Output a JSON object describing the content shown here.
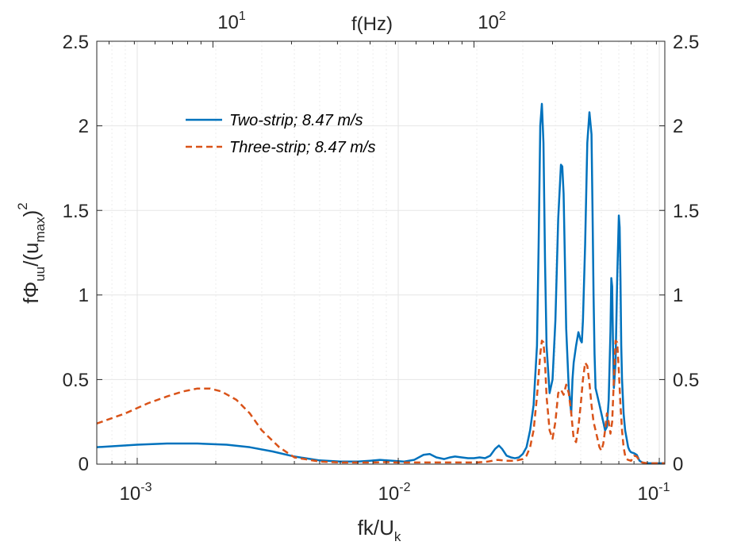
{
  "chart_data": {
    "type": "line",
    "xscale": "log",
    "xlim": [
      0.0007,
      0.105
    ],
    "ylim": [
      0,
      2.5
    ],
    "xlabel": {
      "base": "fk/U",
      "sub": "k"
    },
    "ylabel": {
      "base": "fΦ",
      "sub1": "uu",
      "mid": "/(u",
      "sub2": "max",
      "end": ")",
      "sup": "2"
    },
    "top_axis_label": "f(Hz)",
    "top_ticks": [
      {
        "base": "10",
        "exp": "1",
        "at": 0.00195
      },
      {
        "base": "10",
        "exp": "2",
        "at": 0.0195
      }
    ],
    "x_ticks": [
      {
        "base": "10",
        "exp": "-3",
        "at": 0.001
      },
      {
        "base": "10",
        "exp": "-2",
        "at": 0.01
      },
      {
        "base": "10",
        "exp": "-1",
        "at": 0.1
      }
    ],
    "y_ticks": [
      "0",
      "0.5",
      "1",
      "1.5",
      "2",
      "2.5"
    ],
    "y_tick_values": [
      0,
      0.5,
      1,
      1.5,
      2,
      2.5
    ],
    "grid": true,
    "legend_position": "upper-left",
    "series": [
      {
        "name": "Two-strip; 8.47 m/s",
        "color": "#0072BD",
        "style": "solid",
        "x": [
          0.0007,
          0.001,
          0.0013,
          0.0017,
          0.0022,
          0.0027,
          0.0033,
          0.004,
          0.005,
          0.006,
          0.007,
          0.0078,
          0.0085,
          0.0095,
          0.0105,
          0.0115,
          0.0125,
          0.0132,
          0.014,
          0.015,
          0.0158,
          0.0165,
          0.0175,
          0.0185,
          0.0195,
          0.0205,
          0.0215,
          0.0225,
          0.0235,
          0.0243,
          0.025,
          0.026,
          0.027,
          0.028,
          0.029,
          0.03,
          0.031,
          0.032,
          0.033,
          0.034,
          0.0345,
          0.035,
          0.0355,
          0.036,
          0.0365,
          0.037,
          0.038,
          0.039,
          0.04,
          0.041,
          0.042,
          0.0425,
          0.043,
          0.0435,
          0.044,
          0.045,
          0.046,
          0.0465,
          0.047,
          0.048,
          0.049,
          0.05,
          0.0505,
          0.051,
          0.052,
          0.053,
          0.054,
          0.055,
          0.0555,
          0.056,
          0.0565,
          0.057,
          0.058,
          0.059,
          0.06,
          0.061,
          0.062,
          0.063,
          0.064,
          0.065,
          0.0655,
          0.066,
          0.0665,
          0.067,
          0.068,
          0.069,
          0.07,
          0.0705,
          0.071,
          0.0715,
          0.072,
          0.073,
          0.074,
          0.075,
          0.076,
          0.077,
          0.078,
          0.08,
          0.082,
          0.084,
          0.086,
          0.09,
          0.095,
          0.1,
          0.105
        ],
        "y": [
          0.1,
          0.115,
          0.122,
          0.122,
          0.115,
          0.1,
          0.075,
          0.045,
          0.022,
          0.015,
          0.015,
          0.02,
          0.025,
          0.02,
          0.015,
          0.025,
          0.055,
          0.06,
          0.04,
          0.03,
          0.04,
          0.045,
          0.04,
          0.035,
          0.035,
          0.04,
          0.035,
          0.05,
          0.09,
          0.11,
          0.09,
          0.05,
          0.04,
          0.035,
          0.04,
          0.06,
          0.1,
          0.2,
          0.35,
          0.7,
          1.3,
          2.0,
          2.13,
          1.9,
          1.2,
          0.7,
          0.42,
          0.5,
          0.85,
          1.45,
          1.77,
          1.76,
          1.6,
          1.2,
          0.8,
          0.45,
          0.3,
          0.5,
          0.6,
          0.7,
          0.78,
          0.73,
          0.72,
          0.85,
          1.3,
          1.9,
          2.08,
          1.95,
          1.5,
          1.0,
          0.65,
          0.45,
          0.4,
          0.35,
          0.3,
          0.25,
          0.2,
          0.22,
          0.38,
          0.78,
          1.1,
          1.05,
          0.7,
          0.45,
          0.6,
          1.1,
          1.47,
          1.4,
          1.1,
          0.7,
          0.5,
          0.3,
          0.2,
          0.15,
          0.1,
          0.08,
          0.07,
          0.065,
          0.055,
          0.02,
          0.01,
          0.005,
          0.005,
          0.005,
          0.005
        ]
      },
      {
        "name": "Three-strip; 8.47 m/s",
        "color": "#D95319",
        "style": "dashed",
        "x": [
          0.0007,
          0.0009,
          0.0011,
          0.0013,
          0.0015,
          0.0017,
          0.0019,
          0.0021,
          0.0024,
          0.0027,
          0.003,
          0.0035,
          0.004,
          0.005,
          0.006,
          0.007,
          0.008,
          0.009,
          0.01,
          0.012,
          0.014,
          0.016,
          0.018,
          0.02,
          0.022,
          0.024,
          0.026,
          0.028,
          0.03,
          0.031,
          0.032,
          0.033,
          0.034,
          0.035,
          0.0355,
          0.036,
          0.0365,
          0.037,
          0.038,
          0.039,
          0.04,
          0.041,
          0.042,
          0.043,
          0.044,
          0.045,
          0.046,
          0.047,
          0.048,
          0.049,
          0.05,
          0.051,
          0.052,
          0.053,
          0.054,
          0.055,
          0.056,
          0.057,
          0.058,
          0.059,
          0.06,
          0.061,
          0.062,
          0.063,
          0.064,
          0.065,
          0.066,
          0.067,
          0.068,
          0.069,
          0.07,
          0.071,
          0.072,
          0.073,
          0.074,
          0.075,
          0.076,
          0.078,
          0.08,
          0.082,
          0.084,
          0.086,
          0.09,
          0.095,
          0.1,
          0.105
        ],
        "y": [
          0.24,
          0.3,
          0.36,
          0.4,
          0.43,
          0.447,
          0.447,
          0.43,
          0.38,
          0.3,
          0.2,
          0.1,
          0.04,
          0.015,
          0.01,
          0.01,
          0.01,
          0.012,
          0.01,
          0.01,
          0.01,
          0.01,
          0.01,
          0.01,
          0.015,
          0.025,
          0.02,
          0.02,
          0.03,
          0.05,
          0.1,
          0.2,
          0.4,
          0.65,
          0.73,
          0.72,
          0.6,
          0.4,
          0.2,
          0.15,
          0.25,
          0.42,
          0.44,
          0.41,
          0.47,
          0.42,
          0.3,
          0.15,
          0.13,
          0.22,
          0.35,
          0.5,
          0.6,
          0.58,
          0.48,
          0.35,
          0.25,
          0.2,
          0.15,
          0.1,
          0.08,
          0.12,
          0.2,
          0.3,
          0.25,
          0.18,
          0.25,
          0.5,
          0.73,
          0.72,
          0.55,
          0.35,
          0.2,
          0.1,
          0.05,
          0.03,
          0.025,
          0.02,
          0.05,
          0.045,
          0.02,
          0.01,
          0.005,
          0.005,
          0.005,
          0.005
        ]
      }
    ]
  }
}
